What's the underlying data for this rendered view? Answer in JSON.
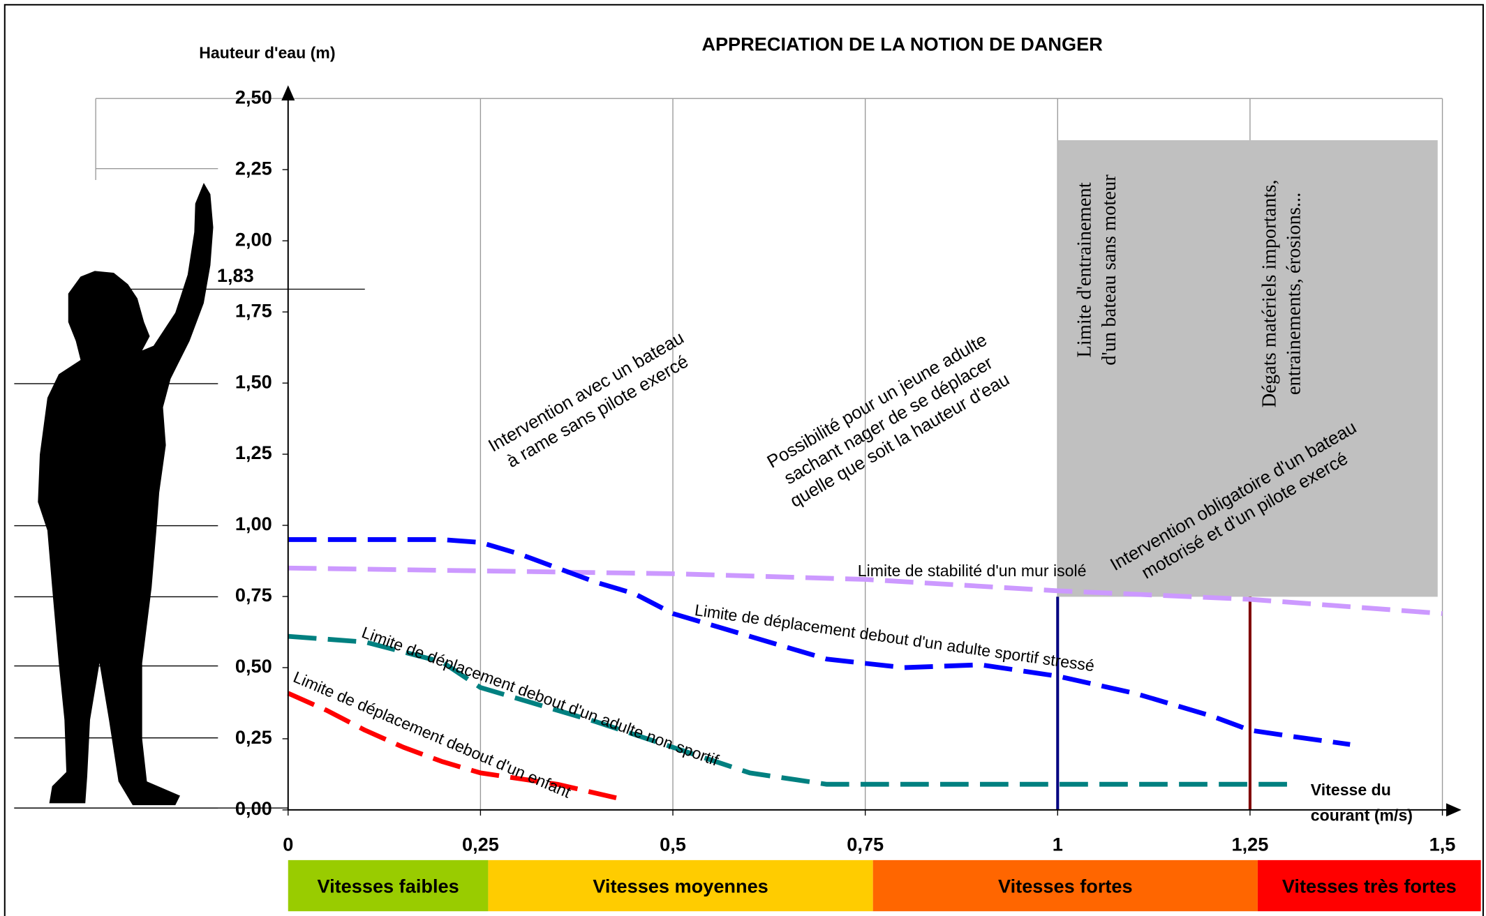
{
  "chart_data": {
    "type": "line",
    "title": "APPRECIATION DE LA NOTION DE DANGER",
    "y_label": "Hauteur d'eau (m)",
    "x_label_lines": [
      "Vitesse du",
      "courant (m/s)"
    ],
    "xlim": [
      0,
      1.5
    ],
    "ylim": [
      0,
      2.5
    ],
    "xticks": [
      0,
      {
        "value": 0.25,
        "label": "0,25"
      },
      {
        "value": 0.5,
        "label": "0,5"
      },
      {
        "value": 0.75,
        "label": "0,75"
      },
      1,
      {
        "value": 1.25,
        "label": "1,25"
      },
      {
        "value": 1.5,
        "label": "1,5"
      }
    ],
    "yticks": [
      {
        "value": 0,
        "label": "0,00"
      },
      {
        "value": 0.25,
        "label": "0,25"
      },
      {
        "value": 0.5,
        "label": "0,50"
      },
      {
        "value": 0.75,
        "label": "0,75"
      },
      {
        "value": 1,
        "label": "1,00"
      },
      {
        "value": 1.25,
        "label": "1,25"
      },
      {
        "value": 1.5,
        "label": "1,50"
      },
      {
        "value": 1.75,
        "label": "1,75"
      },
      {
        "value": 2,
        "label": "2,00"
      },
      {
        "value": 2.25,
        "label": "2,25"
      },
      {
        "value": 2.5,
        "label": "2,50"
      }
    ],
    "grid": true,
    "person_height": {
      "value": 1.83,
      "label": "1,83"
    },
    "series": [
      {
        "name": "Limite de stabilité d'un mur isolé",
        "color": "#cc99ff",
        "x": [
          0,
          0.5,
          0.75,
          1,
          1.25,
          1.5
        ],
        "values": [
          0.85,
          0.83,
          0.81,
          0.77,
          0.74,
          0.69
        ]
      },
      {
        "name": "Limite de déplacement debout d'un adulte sportif stressé",
        "color": "#0000ff",
        "x": [
          0,
          0.1,
          0.2,
          0.25,
          0.3,
          0.35,
          0.4,
          0.45,
          0.5,
          0.6,
          0.7,
          0.8,
          0.9,
          1,
          1.1,
          1.2,
          1.25,
          1.3,
          1.38
        ],
        "values": [
          0.95,
          0.95,
          0.95,
          0.94,
          0.9,
          0.85,
          0.8,
          0.76,
          0.69,
          0.61,
          0.53,
          0.5,
          0.51,
          0.47,
          0.41,
          0.33,
          0.28,
          0.26,
          0.23
        ]
      },
      {
        "name": "Limite de déplacement debout d'un adulte non sportif",
        "color": "#008080",
        "x": [
          0,
          0.1,
          0.2,
          0.25,
          0.3,
          0.4,
          0.5,
          0.6,
          0.7,
          0.75,
          1,
          1.3
        ],
        "values": [
          0.61,
          0.59,
          0.52,
          0.43,
          0.39,
          0.31,
          0.22,
          0.13,
          0.09,
          0.09,
          0.09,
          0.09
        ]
      },
      {
        "name": "Limite de déplacement debout d'un enfant",
        "color": "#ff0000",
        "x": [
          0,
          0.05,
          0.1,
          0.15,
          0.2,
          0.25,
          0.3,
          0.35,
          0.43
        ],
        "values": [
          0.41,
          0.35,
          0.28,
          0.22,
          0.17,
          0.13,
          0.11,
          0.09,
          0.04
        ]
      }
    ],
    "vertical_markers": [
      {
        "x": 1,
        "color": "#000080"
      },
      {
        "x": 1.25,
        "color": "#800000"
      }
    ],
    "annotations": [
      {
        "lines": [
          "Intervention avec un bateau",
          "à rame sans pilote exercé"
        ]
      },
      {
        "lines": [
          "Possibilité pour un jeune adulte",
          "sachant nager de se déplacer",
          "quelle que soit la hauteur d'eau"
        ]
      },
      {
        "lines": [
          "Limite d'entrainement",
          "d'un bateau sans moteur"
        ]
      },
      {
        "lines": [
          "Dégats matériels importants,",
          "entrainements, érosions..."
        ]
      },
      {
        "lines": [
          "Intervention obligatoire d'un bateau",
          "motorisé et d'un pilote exercé"
        ]
      }
    ],
    "speed_bands": [
      {
        "label": "Vitesses faibles",
        "color": "#99cc00",
        "from": 0,
        "to": 0.26
      },
      {
        "label": "Vitesses moyennes",
        "color": "#ffcc00",
        "from": 0.26,
        "to": 0.76
      },
      {
        "label": "Vitesses fortes",
        "color": "#ff6600",
        "from": 0.76,
        "to": 1.26
      },
      {
        "label": "Vitesses très fortes",
        "color": "#ff0000",
        "from": 1.26,
        "to": 1.55
      }
    ]
  }
}
